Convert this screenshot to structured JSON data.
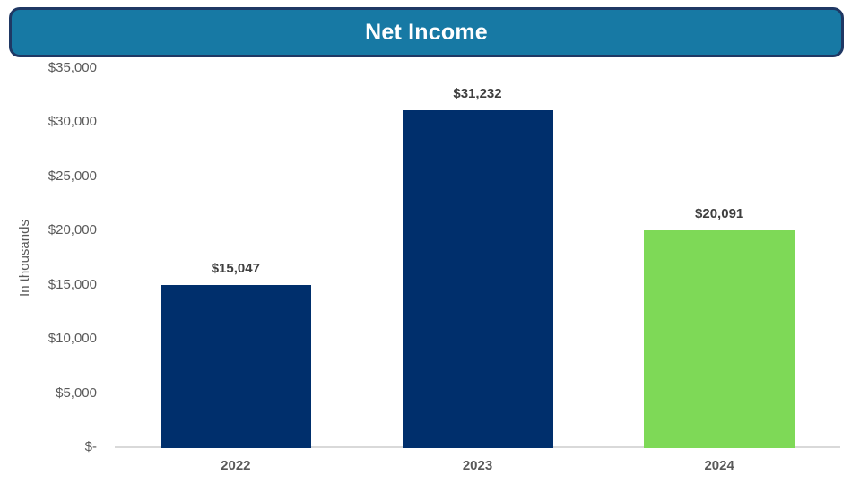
{
  "title": "Net Income",
  "colors": {
    "header_fill": "#1779A4",
    "header_border": "#1F3864",
    "navy_bar": "#002F6C",
    "green_bar": "#7ED957",
    "axis_line": "#D9D9D9",
    "tick_text": "#595959",
    "data_label_text": "#3F3F3F"
  },
  "chart_data": {
    "type": "bar",
    "title": "Net Income",
    "xlabel": "",
    "ylabel": "In thousands",
    "categories": [
      "2022",
      "2023",
      "2024"
    ],
    "values": [
      15047,
      31232,
      20091
    ],
    "data_labels": [
      "$15,047",
      "$31,232",
      "$20,091"
    ],
    "bar_colors": [
      "#002F6C",
      "#002F6C",
      "#7ED957"
    ],
    "ylim": [
      0,
      35000
    ],
    "ytick_values": [
      35000,
      30000,
      25000,
      20000,
      15000,
      10000,
      5000,
      0
    ],
    "ytick_labels": [
      "$35,000",
      "$30,000",
      "$25,000",
      "$20,000",
      "$15,000",
      "$10,000",
      "$5,000",
      "$-"
    ],
    "grid": false,
    "legend": false
  }
}
